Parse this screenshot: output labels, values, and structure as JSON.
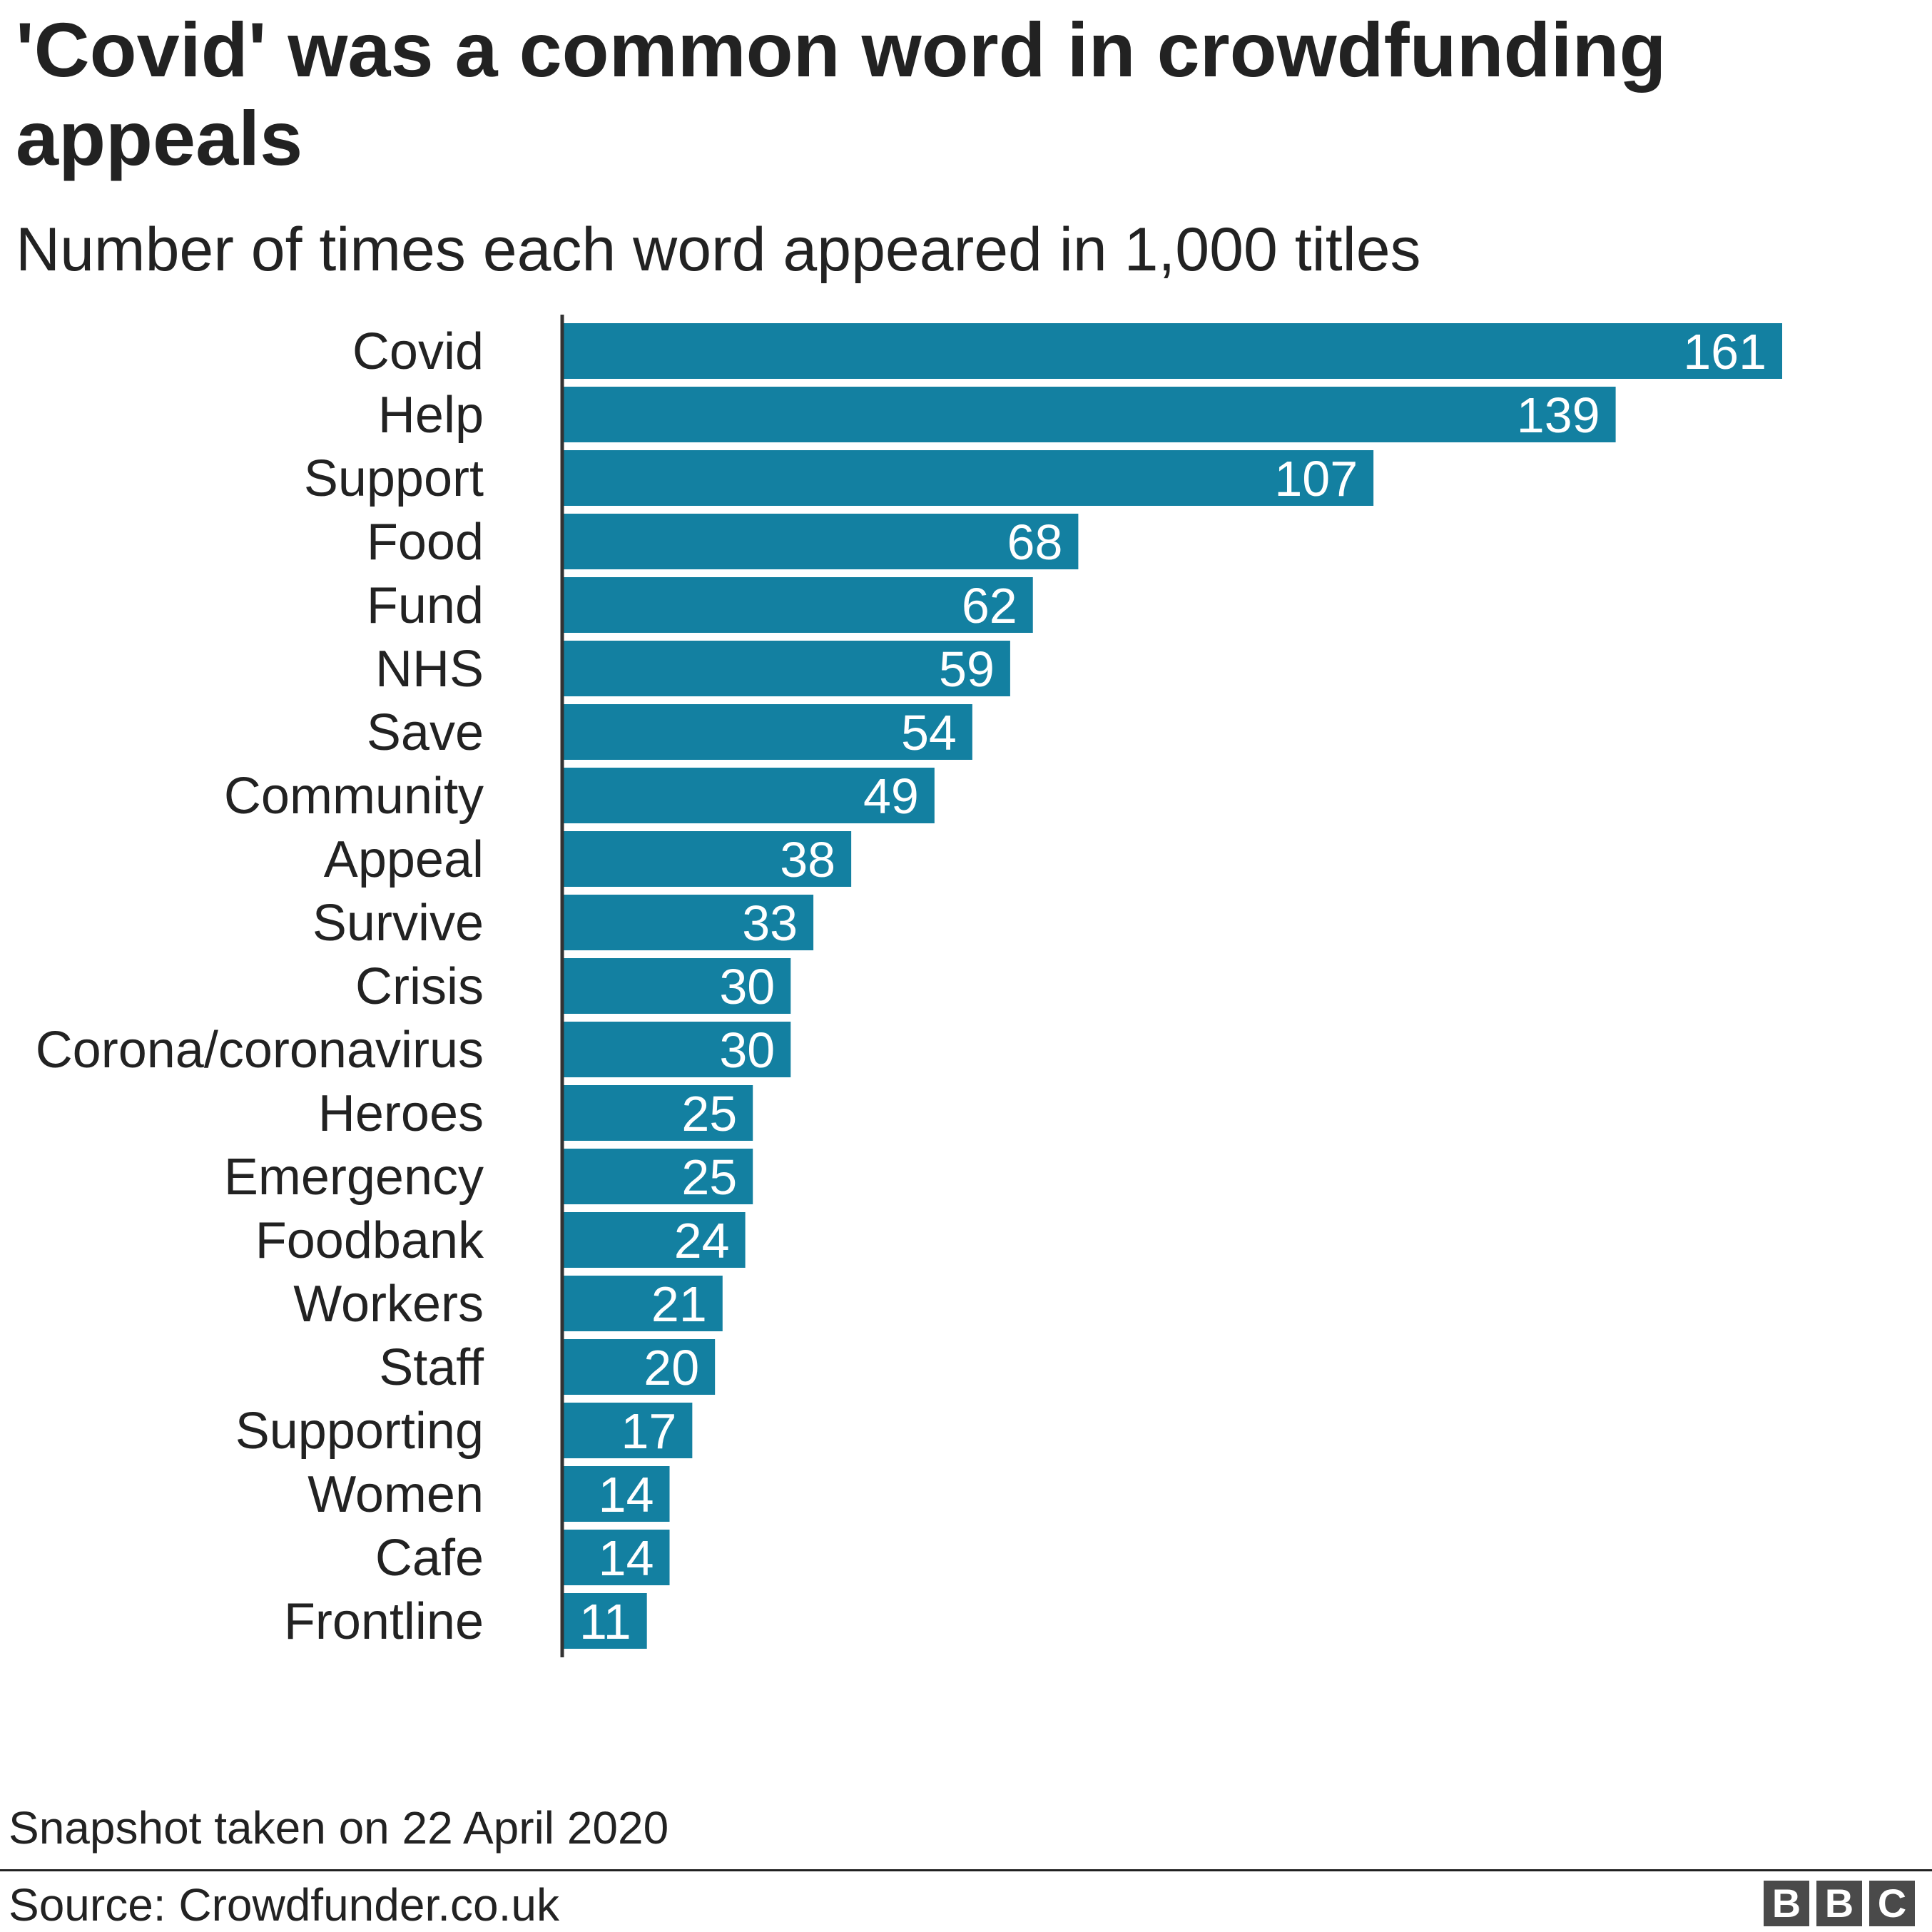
{
  "header": {
    "title": "'Covid' was a common word in crowdfunding appeals",
    "subtitle": "Number of times each word appeared in 1,000 titles"
  },
  "chart_data": {
    "type": "bar",
    "orientation": "horizontal",
    "categories": [
      "Covid",
      "Help",
      "Support",
      "Food",
      "Fund",
      "NHS",
      "Save",
      "Community",
      "Appeal",
      "Survive",
      "Crisis",
      "Corona/coronavirus",
      "Heroes",
      "Emergency",
      "Foodbank",
      "Workers",
      "Staff",
      "Supporting",
      "Women",
      "Cafe",
      "Frontline"
    ],
    "values": [
      161,
      139,
      107,
      68,
      62,
      59,
      54,
      49,
      38,
      33,
      30,
      30,
      25,
      25,
      24,
      21,
      20,
      17,
      14,
      14,
      11
    ],
    "title": "'Covid' was a common word in crowdfunding appeals",
    "subtitle": "Number of times each word appeared in 1,000 titles",
    "xlabel": "",
    "ylabel": "",
    "xlim": [
      0,
      161
    ],
    "grid": false,
    "data_labels": true,
    "bar_color": "#1380a1"
  },
  "footer": {
    "note": "Snapshot taken on 22 April 2020",
    "source": "Source: Crowdfunder.co.uk",
    "logo_letters": [
      "B",
      "B",
      "C"
    ]
  },
  "colors": {
    "bar": "#1380a1",
    "text": "#222222",
    "logo": "#4a4a4a"
  }
}
